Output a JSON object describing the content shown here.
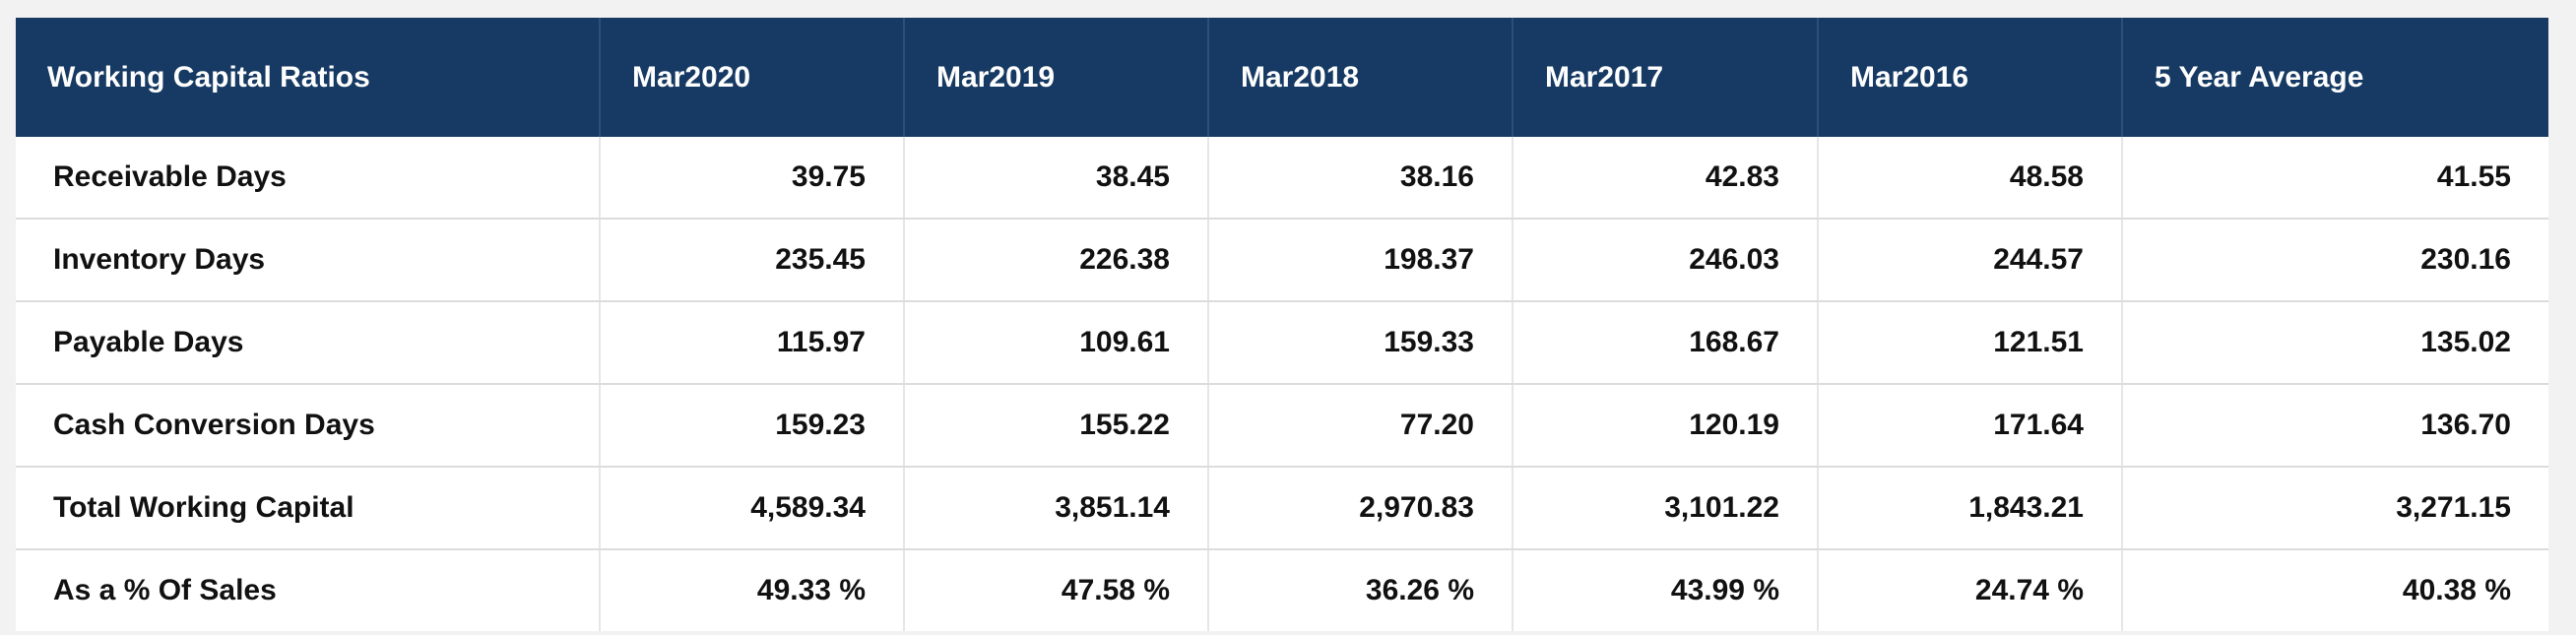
{
  "table": {
    "headers": [
      "Working Capital Ratios",
      "Mar2020",
      "Mar2019",
      "Mar2018",
      "Mar2017",
      "Mar2016",
      "5 Year Average"
    ],
    "rows": [
      {
        "label": "Receivable Days",
        "values": [
          "39.75",
          "38.45",
          "38.16",
          "42.83",
          "48.58",
          "41.55"
        ]
      },
      {
        "label": "Inventory Days",
        "values": [
          "235.45",
          "226.38",
          "198.37",
          "246.03",
          "244.57",
          "230.16"
        ]
      },
      {
        "label": "Payable Days",
        "values": [
          "115.97",
          "109.61",
          "159.33",
          "168.67",
          "121.51",
          "135.02"
        ]
      },
      {
        "label": "Cash Conversion Days",
        "values": [
          "159.23",
          "155.22",
          "77.20",
          "120.19",
          "171.64",
          "136.70"
        ]
      },
      {
        "label": "Total Working Capital",
        "values": [
          "4,589.34",
          "3,851.14",
          "2,970.83",
          "3,101.22",
          "1,843.21",
          "3,271.15"
        ]
      },
      {
        "label": "As a % Of Sales",
        "values": [
          "49.33 %",
          "47.58 %",
          "36.26 %",
          "43.99 %",
          "24.74 %",
          "40.38 %"
        ]
      }
    ]
  },
  "colors": {
    "header_bg": "#163a63",
    "header_text": "#ffffff",
    "body_text": "#111111",
    "page_bg": "#f2f2f2"
  }
}
